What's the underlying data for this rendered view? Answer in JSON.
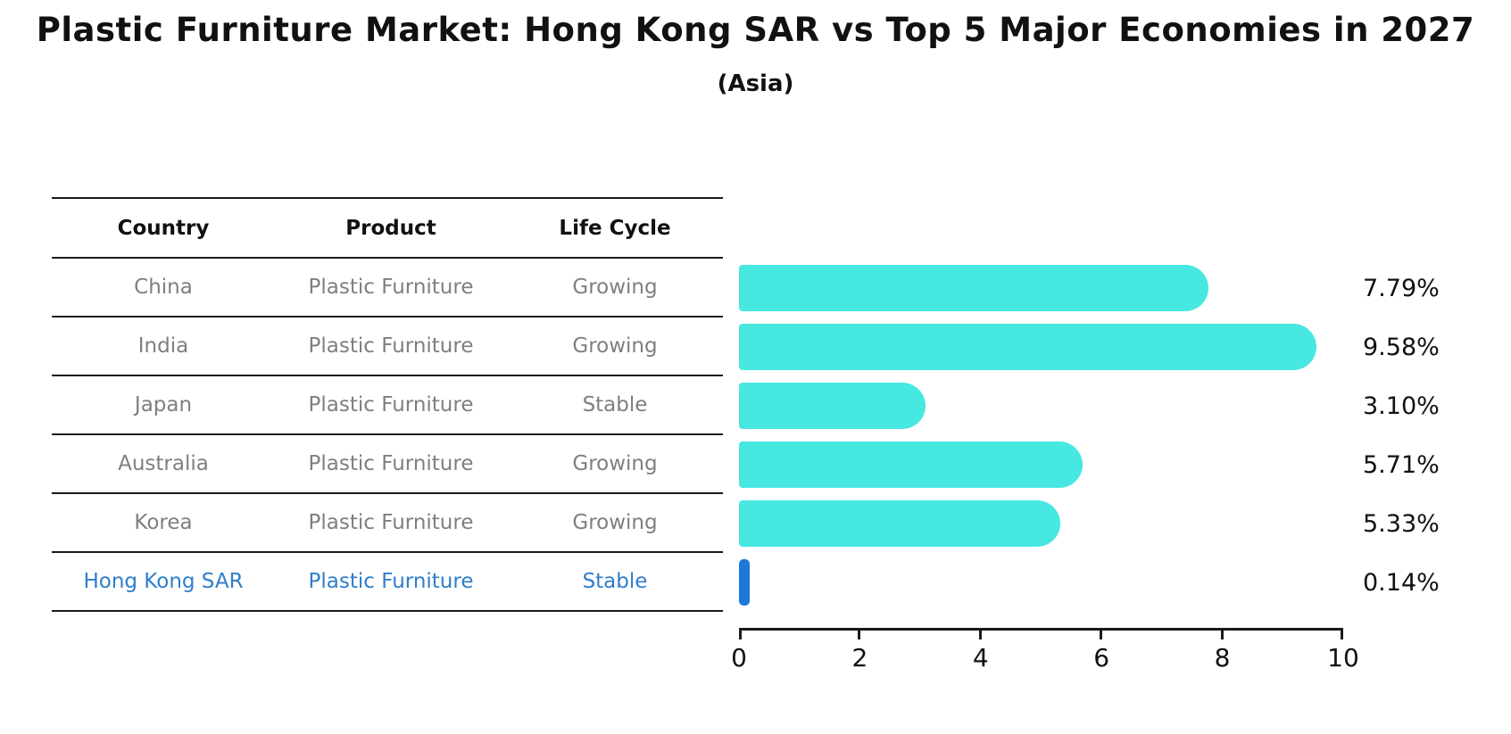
{
  "header": {
    "title": "Plastic Furniture Market: Hong Kong SAR vs Top 5 Major Economies in 2027",
    "subtitle": "(Asia)"
  },
  "table": {
    "headers": {
      "country": "Country",
      "product": "Product",
      "life_cycle": "Life Cycle"
    },
    "rows": [
      {
        "country": "China",
        "product": "Plastic Furniture",
        "life_cycle": "Growing",
        "highlight": false
      },
      {
        "country": "India",
        "product": "Plastic Furniture",
        "life_cycle": "Growing",
        "highlight": false
      },
      {
        "country": "Japan",
        "product": "Plastic Furniture",
        "life_cycle": "Stable",
        "highlight": false
      },
      {
        "country": "Australia",
        "product": "Plastic Furniture",
        "life_cycle": "Growing",
        "highlight": false
      },
      {
        "country": "Korea",
        "product": "Plastic Furniture",
        "life_cycle": "Growing",
        "highlight": false
      },
      {
        "country": "Hong Kong SAR",
        "product": "Plastic Furniture",
        "life_cycle": "Stable",
        "highlight": true
      }
    ]
  },
  "chart_data": {
    "type": "bar",
    "orientation": "horizontal",
    "title": "Plastic Furniture Market: Hong Kong SAR vs Top 5 Major Economies in 2027",
    "subtitle": "(Asia)",
    "categories": [
      "China",
      "India",
      "Japan",
      "Australia",
      "Korea",
      "Hong Kong SAR"
    ],
    "values": [
      7.79,
      9.58,
      3.1,
      5.71,
      5.33,
      0.14
    ],
    "value_labels": [
      "7.79%",
      "9.58%",
      "3.10%",
      "5.71%",
      "5.33%",
      "0.14%"
    ],
    "xlim": [
      0,
      10
    ],
    "x_ticks": [
      "0",
      "2",
      "4",
      "6",
      "8",
      "10"
    ],
    "grid": false,
    "legend": false,
    "bar_color": "#46E8E1",
    "highlight_index": 5,
    "highlight_bar_color": "#1E78DC",
    "highlight_text_color": "#2E7ECB",
    "row_text_color": "#7F7F7F"
  }
}
